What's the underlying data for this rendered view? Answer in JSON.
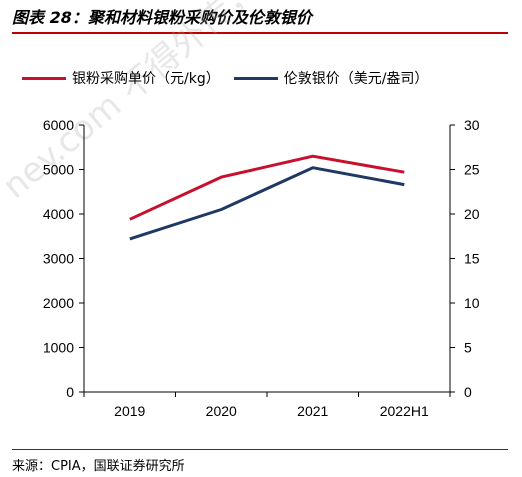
{
  "figure": {
    "title": "图表 28：聚和材料银粉采购价及伦敦银价",
    "source": "来源：CPIA，国联证券研究所"
  },
  "watermark": "ney.com 不得外传，未经许可",
  "colors": {
    "series1": "#c8102e",
    "series2": "#1f3864",
    "rule": "#c00000"
  },
  "chart_data": {
    "type": "line",
    "categories": [
      "2019",
      "2020",
      "2021",
      "2022H1"
    ],
    "series": [
      {
        "name": "银粉采购单价（元/kg）",
        "axis": "left",
        "values": [
          3880,
          4830,
          5300,
          4940
        ]
      },
      {
        "name": "伦敦银价（美元/盎司）",
        "axis": "right",
        "values": [
          17.2,
          20.5,
          25.2,
          23.3
        ]
      }
    ],
    "ylim_left": [
      0,
      6000
    ],
    "yticks_left": [
      "0",
      "1000",
      "2000",
      "3000",
      "4000",
      "5000",
      "6000"
    ],
    "ylim_right": [
      0,
      30
    ],
    "yticks_right": [
      "0",
      "5",
      "10",
      "15",
      "20",
      "25",
      "30"
    ],
    "grid": false,
    "legend_position": "top"
  }
}
